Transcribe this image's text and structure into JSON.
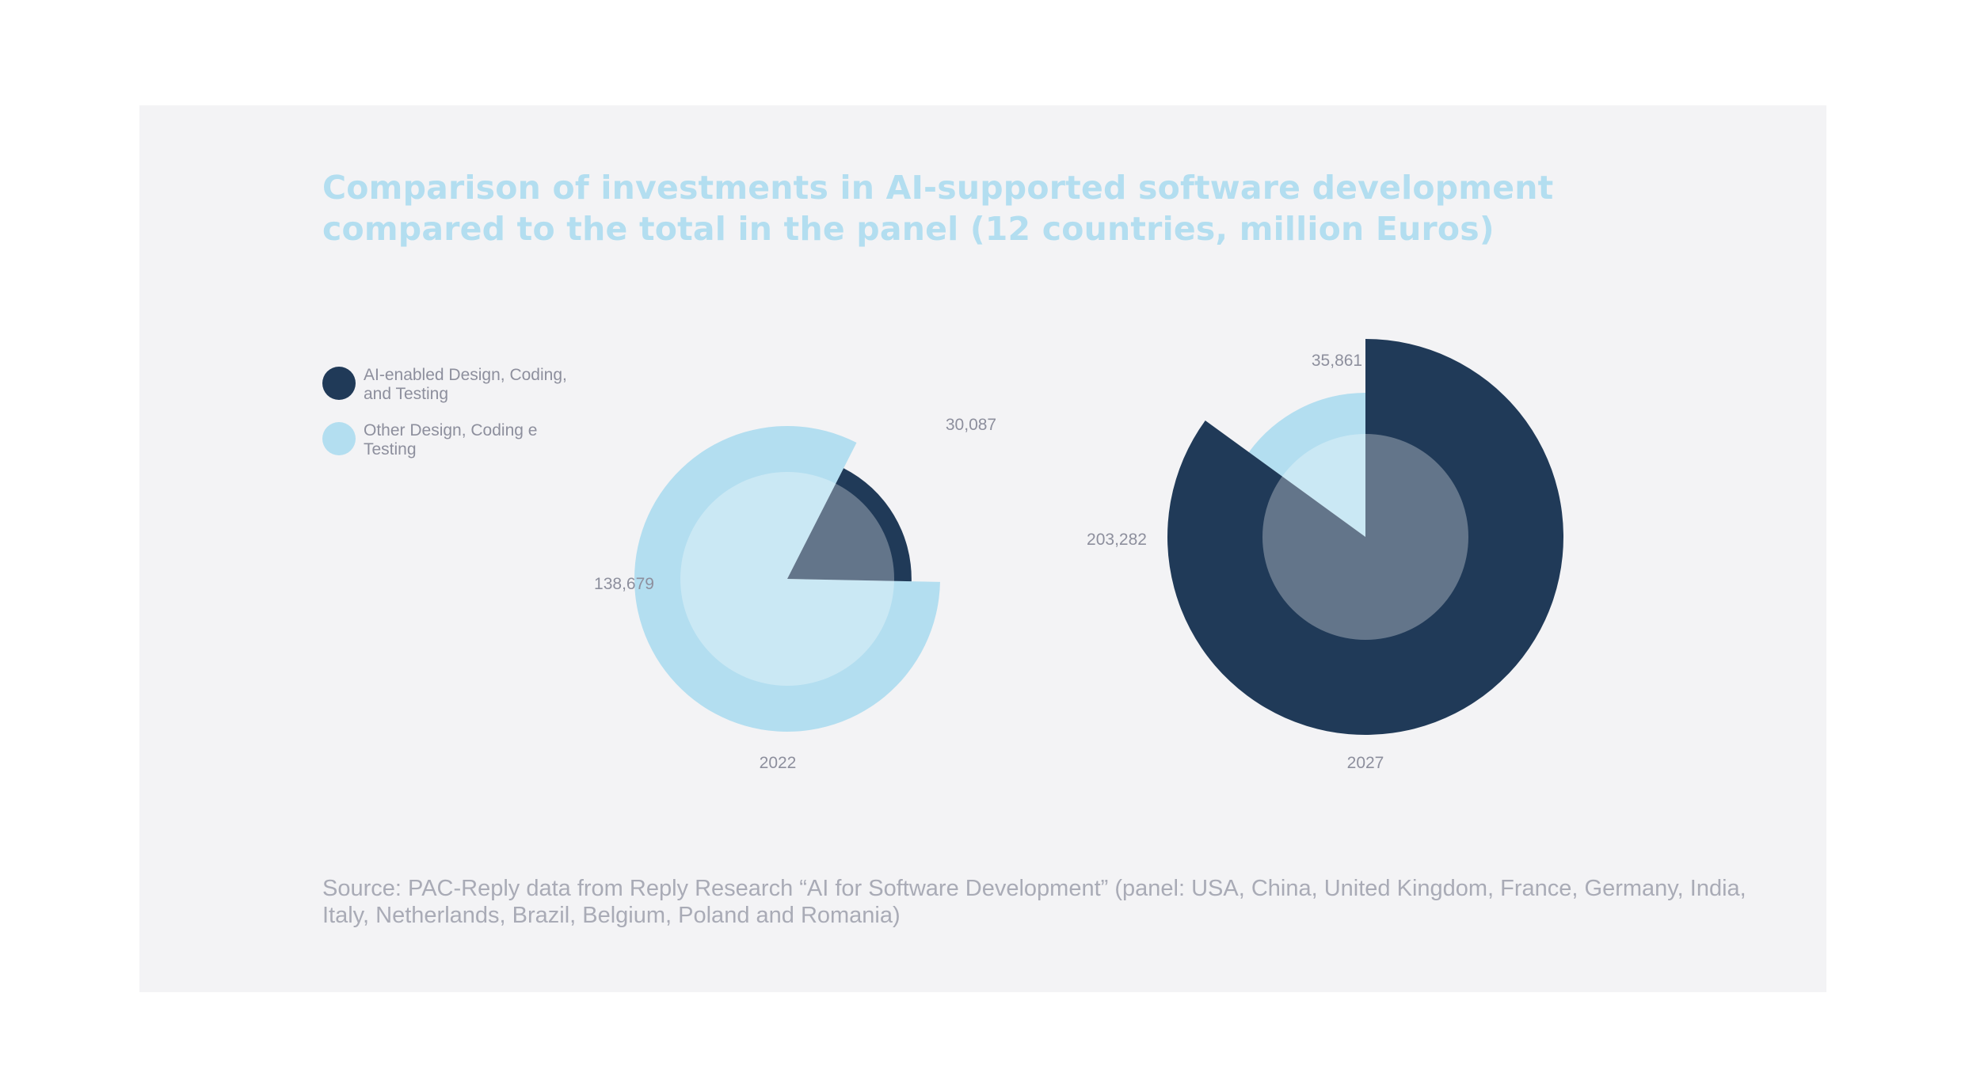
{
  "chart": {
    "title": "Comparison of investments in AI-supported software development compared to the total in the panel (12 countries, million Euros)",
    "source": "Source: PAC-Reply data from Reply Research “AI for Software Development” (panel: USA, China, United Kingdom, France, Germany, India, Italy, Netherlands, Brazil, Belgium, Poland and Romania)"
  },
  "legend": [
    {
      "label": "AI-enabled Design, Coding, and Testing",
      "color": "#203a58"
    },
    {
      "label": "Other Design, Coding e Testing",
      "color": "#b3def0"
    }
  ],
  "colors": {
    "ai": "#203a58",
    "other": "#b3def0",
    "inner_circle": "#ffffff",
    "background": "#f3f3f5"
  },
  "chart_data": {
    "type": "pie",
    "title": "Comparison of investments in AI-supported software development compared to the total in the panel (12 countries, million Euros)",
    "unit": "million Euros",
    "series_names": [
      "AI-enabled Design, Coding, and Testing",
      "Other Design, Coding e Testing"
    ],
    "charts": [
      {
        "year": "2022",
        "values": [
          {
            "name": "AI-enabled Design, Coding, and Testing",
            "value": 30087,
            "label": "30,087"
          },
          {
            "name": "Other Design, Coding e Testing",
            "value": 138679,
            "label": "138,679"
          }
        ]
      },
      {
        "year": "2027",
        "values": [
          {
            "name": "AI-enabled Design, Coding, and Testing",
            "value": 203282,
            "label": "203,282"
          },
          {
            "name": "Other Design, Coding e Testing",
            "value": 35861,
            "label": "35,861"
          }
        ]
      }
    ]
  }
}
